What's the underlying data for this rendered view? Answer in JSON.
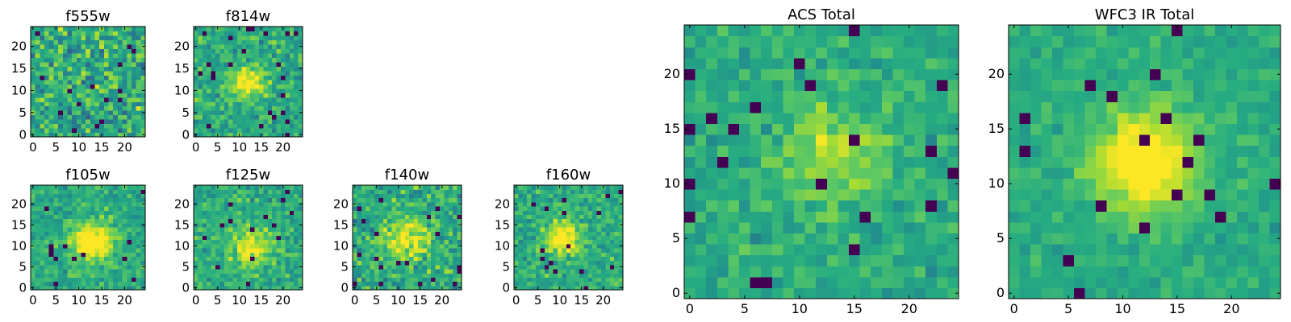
{
  "chart_data": [
    {
      "type": "heatmap",
      "title": "f555w",
      "colormap": "viridis",
      "grid": false,
      "xlim": [
        -0.5,
        24.5
      ],
      "ylim": [
        -0.5,
        24.5
      ],
      "xticks": [
        0,
        5,
        10,
        15,
        20
      ],
      "yticks": [
        0,
        5,
        10,
        15,
        20
      ],
      "blob": {
        "x": 12,
        "y": 12,
        "amp": 0.0,
        "sigma": 3.5
      },
      "noise": 0.38,
      "seed": 11
    },
    {
      "type": "heatmap",
      "title": "f814w",
      "colormap": "viridis",
      "grid": false,
      "xlim": [
        -0.5,
        24.5
      ],
      "ylim": [
        -0.5,
        24.5
      ],
      "xticks": [
        0,
        5,
        10,
        15,
        20
      ],
      "yticks": [
        0,
        5,
        10,
        15,
        20
      ],
      "blob": {
        "x": 12,
        "y": 12,
        "amp": 0.45,
        "sigma": 2.6
      },
      "noise": 0.26,
      "seed": 23
    },
    {
      "type": "heatmap",
      "title": "f105w",
      "colormap": "viridis",
      "grid": false,
      "xlim": [
        -0.5,
        24.5
      ],
      "ylim": [
        -0.5,
        24.5
      ],
      "xticks": [
        0,
        5,
        10,
        15,
        20
      ],
      "yticks": [
        0,
        5,
        10,
        15,
        20
      ],
      "blob": {
        "x": 13,
        "y": 11,
        "amp": 0.5,
        "sigma": 3.2
      },
      "noise": 0.22,
      "seed": 37
    },
    {
      "type": "heatmap",
      "title": "f125w",
      "colormap": "viridis",
      "grid": false,
      "xlim": [
        -0.5,
        24.5
      ],
      "ylim": [
        -0.5,
        24.5
      ],
      "xticks": [
        0,
        5,
        10,
        15,
        20
      ],
      "yticks": [
        0,
        5,
        10,
        15,
        20
      ],
      "blob": {
        "x": 13,
        "y": 10,
        "amp": 0.35,
        "sigma": 3.4
      },
      "noise": 0.25,
      "seed": 41
    },
    {
      "type": "heatmap",
      "title": "f140w",
      "colormap": "viridis",
      "grid": false,
      "xlim": [
        -0.5,
        24.5
      ],
      "ylim": [
        -0.5,
        24.5
      ],
      "xticks": [
        0,
        5,
        10,
        15,
        20
      ],
      "yticks": [
        0,
        5,
        10,
        15,
        20
      ],
      "blob": {
        "x": 12,
        "y": 12,
        "amp": 0.35,
        "sigma": 3.6
      },
      "noise": 0.3,
      "seed": 53
    },
    {
      "type": "heatmap",
      "title": "f160w",
      "colormap": "viridis",
      "grid": false,
      "xlim": [
        -0.5,
        24.5
      ],
      "ylim": [
        -0.5,
        24.5
      ],
      "xticks": [
        0,
        5,
        10,
        15,
        20
      ],
      "yticks": [
        0,
        5,
        10,
        15,
        20
      ],
      "blob": {
        "x": 11,
        "y": 12,
        "amp": 0.45,
        "sigma": 2.8
      },
      "noise": 0.24,
      "seed": 67
    },
    {
      "type": "heatmap",
      "title": "ACS Total",
      "colormap": "viridis",
      "grid": false,
      "xlim": [
        -0.5,
        24.5
      ],
      "ylim": [
        -0.5,
        24.5
      ],
      "xticks": [
        0,
        5,
        10,
        15,
        20
      ],
      "yticks": [
        0,
        5,
        10,
        15,
        20
      ],
      "blob": {
        "x": 13,
        "y": 13,
        "amp": 0.28,
        "sigma": 3.0
      },
      "noise": 0.2,
      "seed": 79
    },
    {
      "type": "heatmap",
      "title": "WFC3 IR Total",
      "colormap": "viridis",
      "grid": false,
      "xlim": [
        -0.5,
        24.5
      ],
      "ylim": [
        -0.5,
        24.5
      ],
      "xticks": [
        0,
        5,
        10,
        15,
        20
      ],
      "yticks": [
        0,
        5,
        10,
        15,
        20
      ],
      "blob": {
        "x": 12,
        "y": 12,
        "amp": 0.55,
        "sigma": 3.2
      },
      "noise": 0.14,
      "seed": 97
    }
  ]
}
